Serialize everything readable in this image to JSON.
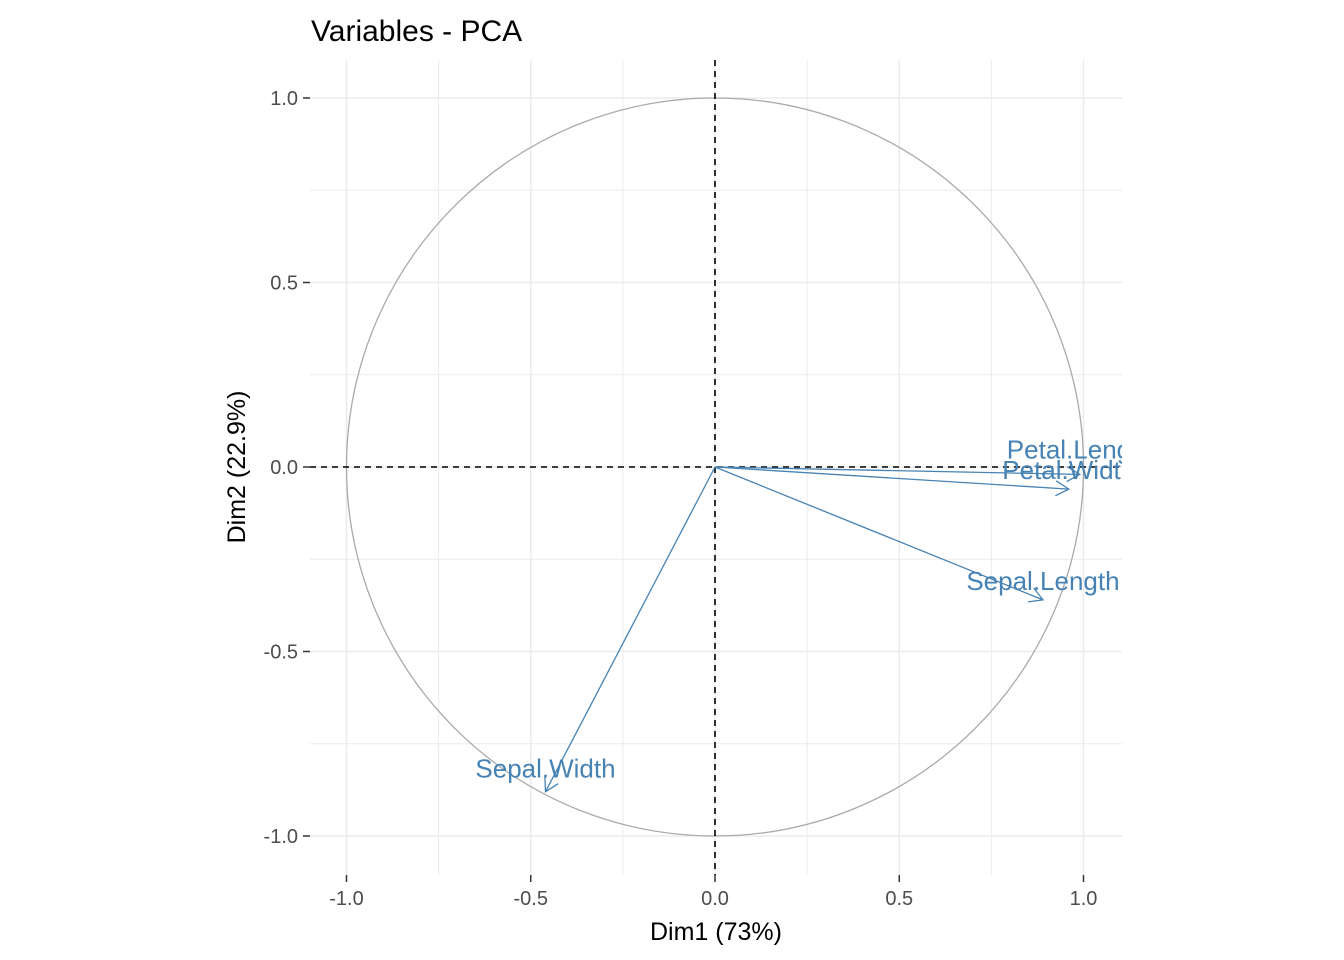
{
  "chart_data": {
    "type": "scatter",
    "subtype": "pca-variable-correlation-circle",
    "title": "Variables - PCA",
    "xlabel": "Dim1 (73%)",
    "ylabel": "Dim2 (22.9%)",
    "xlim": [
      -1.1,
      1.1
    ],
    "ylim": [
      -1.1,
      1.1
    ],
    "x_ticks": [
      -1.0,
      -0.5,
      0.0,
      0.5,
      1.0
    ],
    "x_tick_labels": [
      "-1.0",
      "-0.5",
      "0.0",
      "0.5",
      "1.0"
    ],
    "y_ticks": [
      1.0,
      0.5,
      0.0,
      -0.5,
      -1.0
    ],
    "y_tick_labels": [
      "1.0",
      "0.5",
      "0.0",
      "-0.5",
      "-1.0"
    ],
    "grid": true,
    "unit_circle": true,
    "reference_lines": {
      "x": 0,
      "y": 0,
      "style": "dashed"
    },
    "variables": [
      {
        "name": "Sepal.Length",
        "label": "Sepal.Length",
        "x": 0.89,
        "y": -0.36
      },
      {
        "name": "Sepal.Width",
        "label": "Sepal.Width",
        "x": -0.46,
        "y": -0.88
      },
      {
        "name": "Petal.Length",
        "label": "Petal.Length",
        "x": 0.99,
        "y": -0.02
      },
      {
        "name": "Petal.Width",
        "label": "Petal.Width",
        "x": 0.96,
        "y": -0.06
      }
    ],
    "colors": {
      "arrow": "#4682b4",
      "circle": "#aaaaaa",
      "grid": "#ebebeb",
      "reference": "#000000"
    }
  }
}
